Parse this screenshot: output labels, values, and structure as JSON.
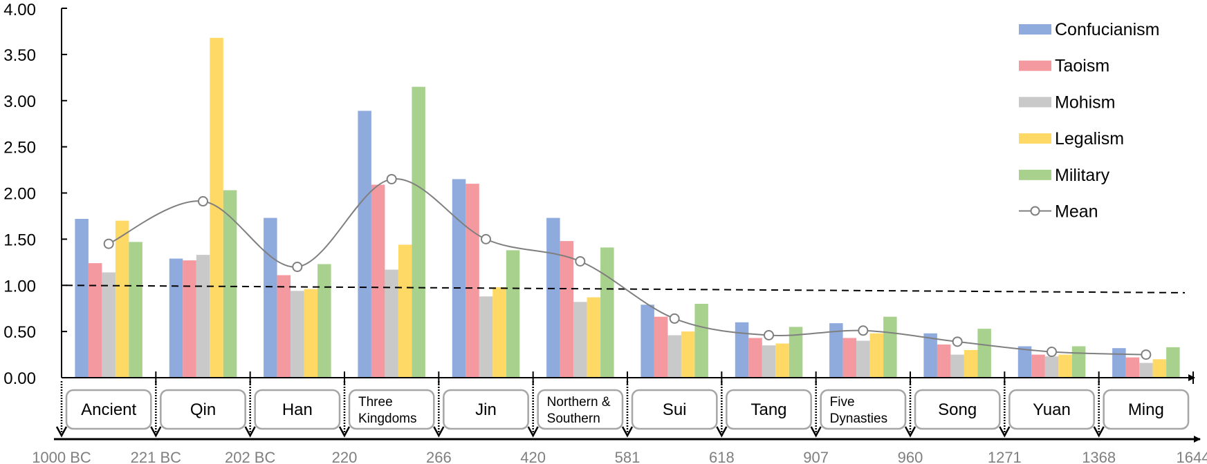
{
  "chart_data": {
    "type": "bar",
    "title": "",
    "xlabel": "",
    "ylabel": "",
    "ylim": [
      0,
      4
    ],
    "yticks": [
      "0.00",
      "0.50",
      "1.00",
      "1.50",
      "2.00",
      "2.50",
      "3.00",
      "3.50",
      "4.00"
    ],
    "grid": false,
    "legend_position": "top-right",
    "categories": [
      "Ancient",
      "Qin",
      "Han",
      "Three Kingdoms",
      "Jin",
      "Northern & Southern",
      "Sui",
      "Tang",
      "Five Dynasties",
      "Song",
      "Yuan",
      "Ming"
    ],
    "category_label_lines": [
      [
        "Ancient"
      ],
      [
        "Qin"
      ],
      [
        "Han"
      ],
      [
        "Three",
        "Kingdoms"
      ],
      [
        "Jin"
      ],
      [
        "Northern &",
        "Southern"
      ],
      [
        "Sui"
      ],
      [
        "Tang"
      ],
      [
        "Five",
        "Dynasties"
      ],
      [
        "Song"
      ],
      [
        "Yuan"
      ],
      [
        "Ming"
      ]
    ],
    "timeline_dates": [
      "1000 BC",
      "221 BC",
      "202 BC",
      "220",
      "266",
      "420",
      "581",
      "618",
      "907",
      "960",
      "1271",
      "1368",
      "1644"
    ],
    "series": [
      {
        "name": "Confucianism",
        "color": "#8FAADC",
        "values": [
          1.72,
          1.29,
          1.73,
          2.89,
          2.15,
          1.73,
          0.79,
          0.6,
          0.59,
          0.48,
          0.34,
          0.32
        ]
      },
      {
        "name": "Taoism",
        "color": "#F4999F",
        "values": [
          1.24,
          1.27,
          1.11,
          2.09,
          2.1,
          1.48,
          0.66,
          0.43,
          0.43,
          0.36,
          0.25,
          0.22
        ]
      },
      {
        "name": "Mohism",
        "color": "#C9C9C9",
        "values": [
          1.14,
          1.33,
          0.94,
          1.17,
          0.88,
          0.82,
          0.46,
          0.35,
          0.4,
          0.25,
          0.23,
          0.16
        ]
      },
      {
        "name": "Legalism",
        "color": "#FFD966",
        "values": [
          1.7,
          3.68,
          0.96,
          1.44,
          0.98,
          0.87,
          0.5,
          0.37,
          0.48,
          0.3,
          0.25,
          0.2
        ]
      },
      {
        "name": "Military",
        "color": "#A9D18E",
        "values": [
          1.47,
          2.03,
          1.23,
          3.15,
          1.38,
          1.41,
          0.8,
          0.55,
          0.66,
          0.53,
          0.34,
          0.33
        ]
      }
    ],
    "mean": {
      "name": "Mean",
      "color": "#7F7F7F",
      "type": "line",
      "smooth": true,
      "marker": "open-circle",
      "values": [
        1.45,
        1.91,
        1.2,
        2.15,
        1.5,
        1.26,
        0.64,
        0.46,
        0.51,
        0.39,
        0.28,
        0.25
      ]
    },
    "reference_line": {
      "style": "dashed",
      "color": "#000000",
      "start_value": 1.0,
      "end_value": 0.92
    }
  }
}
